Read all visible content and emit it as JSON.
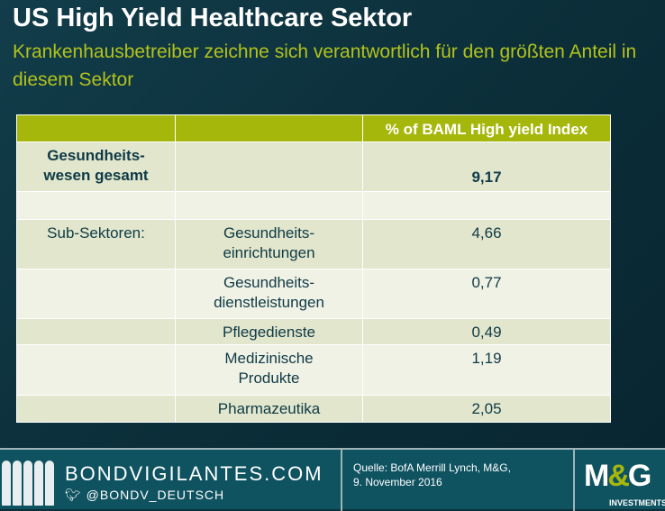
{
  "title": "US High Yield Healthcare Sektor",
  "subtitle": "Krankenhausbetreiber zeichne sich verantwortlich für den größten Anteil in diesem Sektor",
  "table": {
    "header": [
      "",
      "",
      "% of BAML High yield Index"
    ],
    "total": {
      "label": "Gesundheits-wesen gesamt",
      "value": "9,17"
    },
    "sub_label": "Sub-Sektoren:",
    "rows": [
      {
        "name": "Gesundheits-einrichtungen",
        "value": "4,66"
      },
      {
        "name": "Gesundheits-dienstleistungen",
        "value": "0,77"
      },
      {
        "name": "Pflegedienste",
        "value": "0,49"
      },
      {
        "name": "Medizinische Produkte",
        "value": "1,19"
      },
      {
        "name": "Pharmazeutika",
        "value": "2,05"
      }
    ]
  },
  "footer": {
    "site": "BONDVIGILANTES.COM",
    "twitter": "@BONDV_DEUTSCH",
    "source_line1": "Quelle: BofA Merrill Lynch, M&G,",
    "source_line2": "9. November 2016",
    "logo": "M&G INVESTMENTS"
  },
  "colors": {
    "accent": "#a6b70c",
    "background": "#0c2f3a",
    "footer": "#0f5361"
  }
}
